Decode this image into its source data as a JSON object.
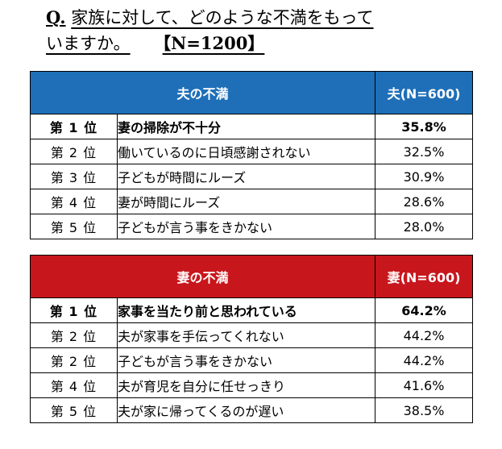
{
  "question": {
    "mark": "Q.",
    "line1": "家族に対して、どのような不満をもって",
    "line2": "いますか。",
    "n": "【N=1200】"
  },
  "husband": {
    "header": "夫の不満",
    "count_header": "夫(N=600)",
    "color": "#1e6fb8",
    "rows": [
      {
        "rank": "第 1 位",
        "item": "妻の掃除が不十分",
        "pct": "35.8%"
      },
      {
        "rank": "第 2 位",
        "item": "働いているのに日頃感謝されない",
        "pct": "32.5%"
      },
      {
        "rank": "第 3 位",
        "item": "子どもが時間にルーズ",
        "pct": "30.9%"
      },
      {
        "rank": "第 4 位",
        "item": "妻が時間にルーズ",
        "pct": "28.6%"
      },
      {
        "rank": "第 5 位",
        "item": "子どもが言う事をきかない",
        "pct": "28.0%"
      }
    ]
  },
  "wife": {
    "header": "妻の不満",
    "count_header": "妻(N=600)",
    "color": "#c8161d",
    "rows": [
      {
        "rank": "第 1 位",
        "item": "家事を当たり前と思われている",
        "pct": "64.2%"
      },
      {
        "rank": "第 2 位",
        "item": "夫が家事を手伝ってくれない",
        "pct": "44.2%"
      },
      {
        "rank": "第 2 位",
        "item": "子どもが言う事をきかない",
        "pct": "44.2%"
      },
      {
        "rank": "第 4 位",
        "item": "夫が育児を自分に任せっきり",
        "pct": "41.6%"
      },
      {
        "rank": "第 5 位",
        "item": "夫が家に帰ってくるのが遅い",
        "pct": "38.5%"
      }
    ]
  }
}
